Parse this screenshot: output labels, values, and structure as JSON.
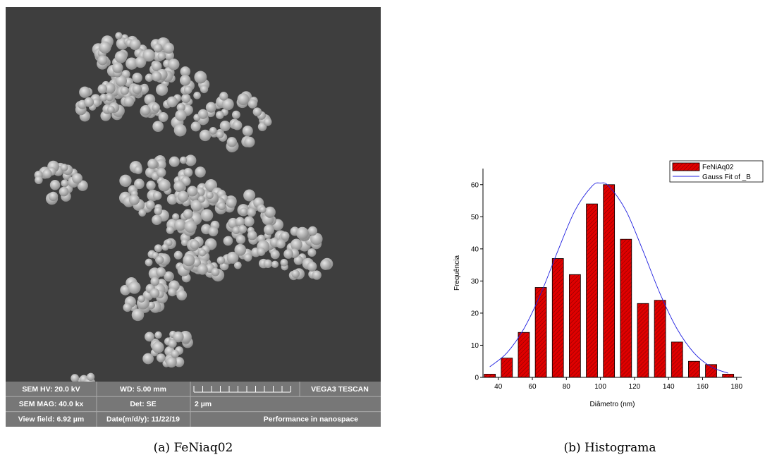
{
  "sem_image": {
    "info_bar": [
      [
        "SEM HV: 20.0 kV",
        "WD: 5.00 mm",
        "VEGA3 TESCAN"
      ],
      [
        "SEM MAG: 40.0 kx",
        "Det: SE",
        "2 µm"
      ],
      [
        "View field: 6.92 µm",
        "Date(m/d/y): 11/22/19",
        "Performance in nanospace"
      ]
    ]
  },
  "captions": [
    "(a) FeNiaq02",
    "(b) Histograma"
  ],
  "chart_data": {
    "type": "histogram",
    "x_label": "Diâmetro (nm)",
    "y_label": "Frequência",
    "name": "FeNiAq02",
    "color": "#e00000",
    "bins": [
      30,
      40,
      50,
      60,
      70,
      80,
      90,
      100,
      110,
      120,
      130,
      140,
      150,
      160,
      170,
      180
    ],
    "values": [
      1,
      6,
      14,
      28,
      37,
      32,
      54,
      60,
      43,
      23,
      24,
      11,
      5,
      4,
      1
    ],
    "fit": {
      "name": "Gauss Fit of _B",
      "color": "#2020e0",
      "x": [
        35,
        45,
        55,
        65,
        75,
        85,
        95,
        100,
        105,
        115,
        125,
        135,
        145,
        155,
        165,
        175
      ],
      "values": [
        3.3,
        7.6,
        15.1,
        26.1,
        39.4,
        51.9,
        59.5,
        60.5,
        59.5,
        51.9,
        39.4,
        26.1,
        15.1,
        7.6,
        3.3,
        1.3
      ]
    },
    "xlim": [
      31,
      183
    ],
    "ylim": [
      0,
      65
    ],
    "xticks": [
      40,
      60,
      80,
      100,
      120,
      140,
      160,
      180
    ],
    "yticks": [
      0,
      10,
      20,
      30,
      40,
      50,
      60
    ],
    "legend": "upper right"
  }
}
